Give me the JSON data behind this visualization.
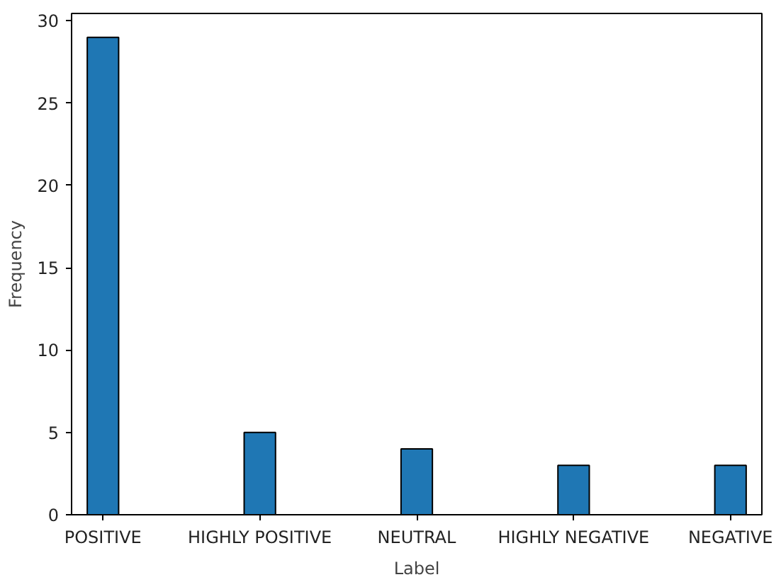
{
  "chart_data": {
    "type": "bar",
    "xlabel": "Label",
    "ylabel": "Frequency",
    "categories": [
      "POSITIVE",
      "HIGHLY POSITIVE",
      "NEUTRAL",
      "HIGHLY NEGATIVE",
      "NEGATIVE"
    ],
    "values": [
      29,
      5,
      4,
      3,
      3
    ],
    "color": "#1f77b4",
    "ylim": [
      0,
      30.45
    ],
    "yticks": [
      0,
      5,
      10,
      15,
      20,
      25,
      30
    ],
    "grid": false
  }
}
